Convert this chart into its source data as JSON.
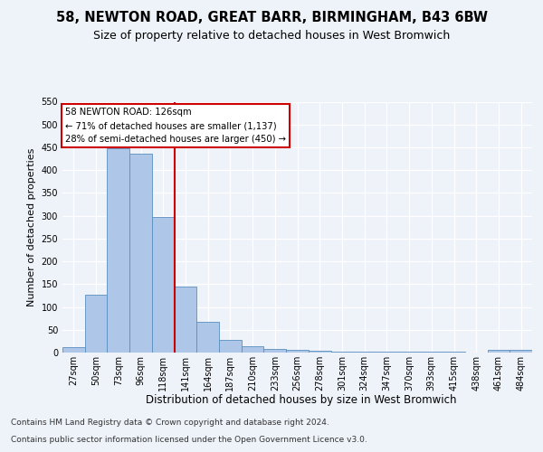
{
  "title": "58, NEWTON ROAD, GREAT BARR, BIRMINGHAM, B43 6BW",
  "subtitle": "Size of property relative to detached houses in West Bromwich",
  "xlabel": "Distribution of detached houses by size in West Bromwich",
  "ylabel": "Number of detached properties",
  "categories": [
    "27sqm",
    "50sqm",
    "73sqm",
    "96sqm",
    "118sqm",
    "141sqm",
    "164sqm",
    "187sqm",
    "210sqm",
    "233sqm",
    "256sqm",
    "278sqm",
    "301sqm",
    "324sqm",
    "347sqm",
    "370sqm",
    "393sqm",
    "415sqm",
    "438sqm",
    "461sqm",
    "484sqm"
  ],
  "values": [
    11,
    126,
    447,
    437,
    297,
    145,
    68,
    27,
    13,
    8,
    5,
    4,
    2,
    1,
    1,
    1,
    1,
    1,
    0,
    6,
    6
  ],
  "bar_color": "#aec6e8",
  "bar_edge_color": "#5a8fc0",
  "vline_x": 4.5,
  "vline_color": "#cc0000",
  "annotation_line1": "58 NEWTON ROAD: 126sqm",
  "annotation_line2": "← 71% of detached houses are smaller (1,137)",
  "annotation_line3": "28% of semi-detached houses are larger (450) →",
  "annotation_box_color": "#ffffff",
  "annotation_box_edge": "#cc0000",
  "ylim": [
    0,
    550
  ],
  "yticks": [
    0,
    50,
    100,
    150,
    200,
    250,
    300,
    350,
    400,
    450,
    500,
    550
  ],
  "footer1": "Contains HM Land Registry data © Crown copyright and database right 2024.",
  "footer2": "Contains public sector information licensed under the Open Government Licence v3.0.",
  "bg_color": "#eef2f9",
  "plot_bg_color": "#eef2f9",
  "title_fontsize": 10.5,
  "subtitle_fontsize": 9,
  "ylabel_fontsize": 8,
  "xlabel_fontsize": 8.5,
  "tick_fontsize": 7,
  "footer_fontsize": 6.5
}
